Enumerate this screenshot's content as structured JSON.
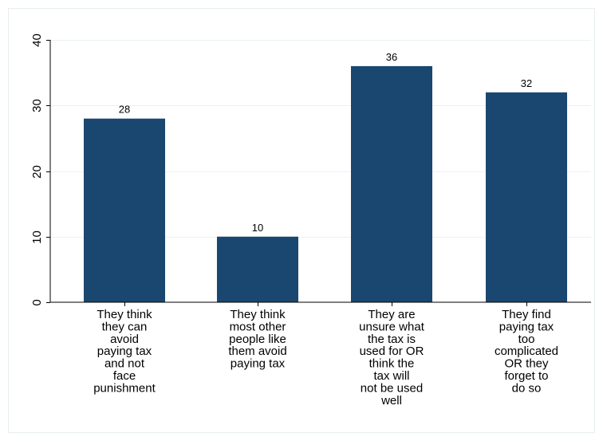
{
  "chart_data": {
    "type": "bar",
    "categories": [
      "They think they can avoid paying tax and not face punishment",
      "They think most other people like them avoid paying tax",
      "They are unsure what the tax is used for OR think the tax will not be used well",
      "They find paying tax too complicated OR they forget to do so"
    ],
    "category_lines": [
      [
        "They think",
        "they can",
        "avoid",
        "paying tax",
        "and not",
        "face",
        "punishment"
      ],
      [
        "They think",
        "most other",
        "people like",
        "them avoid",
        "paying tax"
      ],
      [
        "They are",
        "unsure what",
        "the tax is",
        "used for OR",
        "think the",
        "tax will",
        "not be used",
        "well"
      ],
      [
        "They find",
        "paying tax",
        "too",
        "complicated",
        "OR they",
        "forget to",
        "do so"
      ]
    ],
    "values": [
      28,
      10,
      36,
      32
    ],
    "data_labels": [
      "28",
      "10",
      "36",
      "32"
    ],
    "y_ticks": [
      0,
      10,
      20,
      30,
      40
    ],
    "tick_labels": [
      "0",
      "10",
      "20",
      "30",
      "40"
    ],
    "ylim": [
      0,
      40
    ],
    "grid": true,
    "legend": "none",
    "title": "",
    "xlabel": "",
    "ylabel": "",
    "bar_color": "#1a476f",
    "grid_color": "#eaf2f3",
    "frame_color": "#e7edf1"
  }
}
